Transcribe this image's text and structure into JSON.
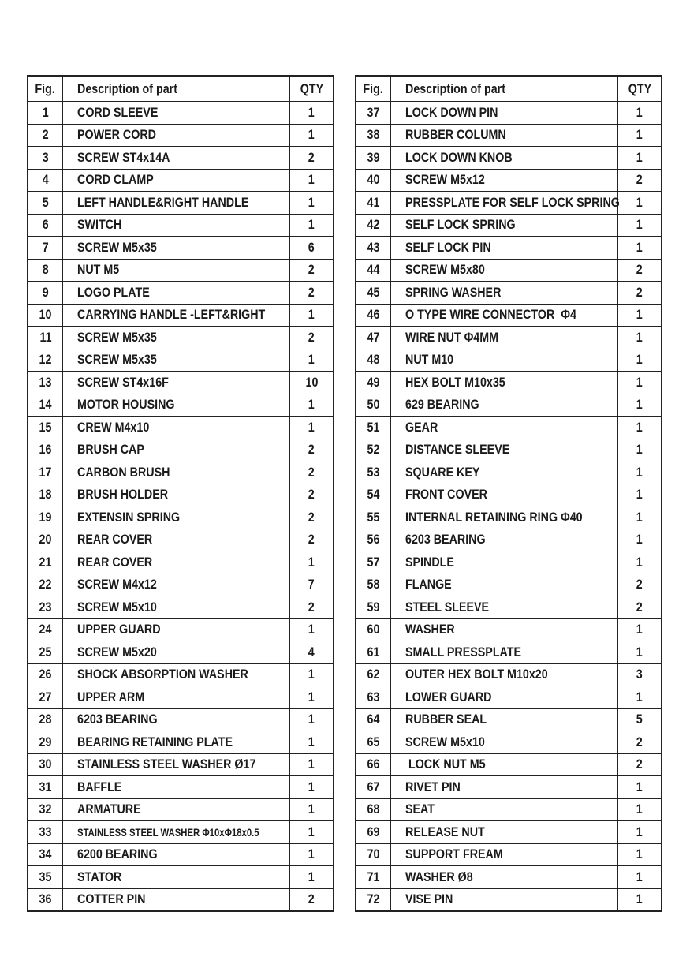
{
  "headers": {
    "fig": "Fig.",
    "description": "Description of part",
    "qty": "QTY"
  },
  "left_table": [
    [
      "1",
      "CORD SLEEVE",
      "1"
    ],
    [
      "2",
      "POWER CORD",
      "1"
    ],
    [
      "3",
      "SCREW ST4x14A",
      "2"
    ],
    [
      "4",
      "CORD CLAMP",
      "1"
    ],
    [
      "5",
      "LEFT HANDLE&RIGHT HANDLE",
      "1"
    ],
    [
      "6",
      "SWITCH",
      "1"
    ],
    [
      "7",
      "SCREW M5x35",
      "6"
    ],
    [
      "8",
      "NUT M5",
      "2"
    ],
    [
      "9",
      "LOGO PLATE",
      "2"
    ],
    [
      "10",
      "CARRYING HANDLE -LEFT&RIGHT",
      "1"
    ],
    [
      "11",
      "SCREW M5x35",
      "2"
    ],
    [
      "12",
      "SCREW M5x35",
      "1"
    ],
    [
      "13",
      "SCREW ST4x16F",
      "10"
    ],
    [
      "14",
      "MOTOR HOUSING",
      "1"
    ],
    [
      "15",
      "CREW M4x10",
      "1"
    ],
    [
      "16",
      "BRUSH CAP",
      "2"
    ],
    [
      "17",
      "CARBON BRUSH",
      "2"
    ],
    [
      "18",
      "BRUSH HOLDER",
      "2"
    ],
    [
      "19",
      "EXTENSIN SPRING",
      "2"
    ],
    [
      "20",
      "REAR COVER",
      "2"
    ],
    [
      "21",
      "REAR COVER",
      "1"
    ],
    [
      "22",
      "SCREW M4x12",
      "7"
    ],
    [
      "23",
      "SCREW M5x10",
      "2"
    ],
    [
      "24",
      "UPPER GUARD",
      "1"
    ],
    [
      "25",
      "SCREW M5x20",
      "4"
    ],
    [
      "26",
      "SHOCK ABSORPTION WASHER",
      "1"
    ],
    [
      "27",
      "UPPER ARM",
      "1"
    ],
    [
      "28",
      "6203 BEARING",
      "1"
    ],
    [
      "29",
      "BEARING RETAINING PLATE",
      "1"
    ],
    [
      "30",
      "STAINLESS STEEL WASHER Ø17",
      "1"
    ],
    [
      "31",
      "BAFFLE",
      "1"
    ],
    [
      "32",
      "ARMATURE",
      "1"
    ],
    [
      "33",
      "STAINLESS STEEL WASHER Φ10xΦ18x0.5",
      "1"
    ],
    [
      "34",
      "6200 BEARING",
      "1"
    ],
    [
      "35",
      "STATOR",
      "1"
    ],
    [
      "36",
      "COTTER PIN",
      "2"
    ]
  ],
  "right_table": [
    [
      "37",
      "LOCK DOWN PIN",
      "1"
    ],
    [
      "38",
      "RUBBER COLUMN",
      "1"
    ],
    [
      "39",
      "LOCK DOWN KNOB",
      "1"
    ],
    [
      "40",
      "SCREW M5x12",
      "2"
    ],
    [
      "41",
      "PRESSPLATE FOR SELF LOCK SPRING",
      "1"
    ],
    [
      "42",
      "SELF LOCK SPRING",
      "1"
    ],
    [
      "43",
      "SELF LOCK PIN",
      "1"
    ],
    [
      "44",
      "SCREW M5x80",
      "2"
    ],
    [
      "45",
      "SPRING WASHER",
      "2"
    ],
    [
      "46",
      "O TYPE WIRE CONNECTOR  Φ4",
      "1"
    ],
    [
      "47",
      "WIRE NUT Φ4MM",
      "1"
    ],
    [
      "48",
      "NUT M10",
      "1"
    ],
    [
      "49",
      "HEX BOLT M10x35",
      "1"
    ],
    [
      "50",
      "629 BEARING",
      "1"
    ],
    [
      "51",
      "GEAR",
      "1"
    ],
    [
      "52",
      "DISTANCE SLEEVE",
      "1"
    ],
    [
      "53",
      "SQUARE KEY",
      "1"
    ],
    [
      "54",
      "FRONT COVER",
      "1"
    ],
    [
      "55",
      "INTERNAL RETAINING RING Φ40",
      "1"
    ],
    [
      "56",
      "6203 BEARING",
      "1"
    ],
    [
      "57",
      "SPINDLE",
      "1"
    ],
    [
      "58",
      "FLANGE",
      "2"
    ],
    [
      "59",
      "STEEL SLEEVE",
      "2"
    ],
    [
      "60",
      "WASHER",
      "1"
    ],
    [
      "61",
      "SMALL PRESSPLATE",
      "1"
    ],
    [
      "62",
      "OUTER HEX BOLT M10x20",
      "3"
    ],
    [
      "63",
      "LOWER GUARD",
      "1"
    ],
    [
      "64",
      "RUBBER SEAL",
      "5"
    ],
    [
      "65",
      "SCREW M5x10",
      "2"
    ],
    [
      "66",
      " LOCK NUT M5",
      "2"
    ],
    [
      "67",
      "RIVET PIN",
      "1"
    ],
    [
      "68",
      "SEAT",
      "1"
    ],
    [
      "69",
      "RELEASE NUT",
      "1"
    ],
    [
      "70",
      "SUPPORT FREAM",
      "1"
    ],
    [
      "71",
      "WASHER Ø8",
      "1"
    ],
    [
      "72",
      "VISE PIN",
      "1"
    ]
  ]
}
